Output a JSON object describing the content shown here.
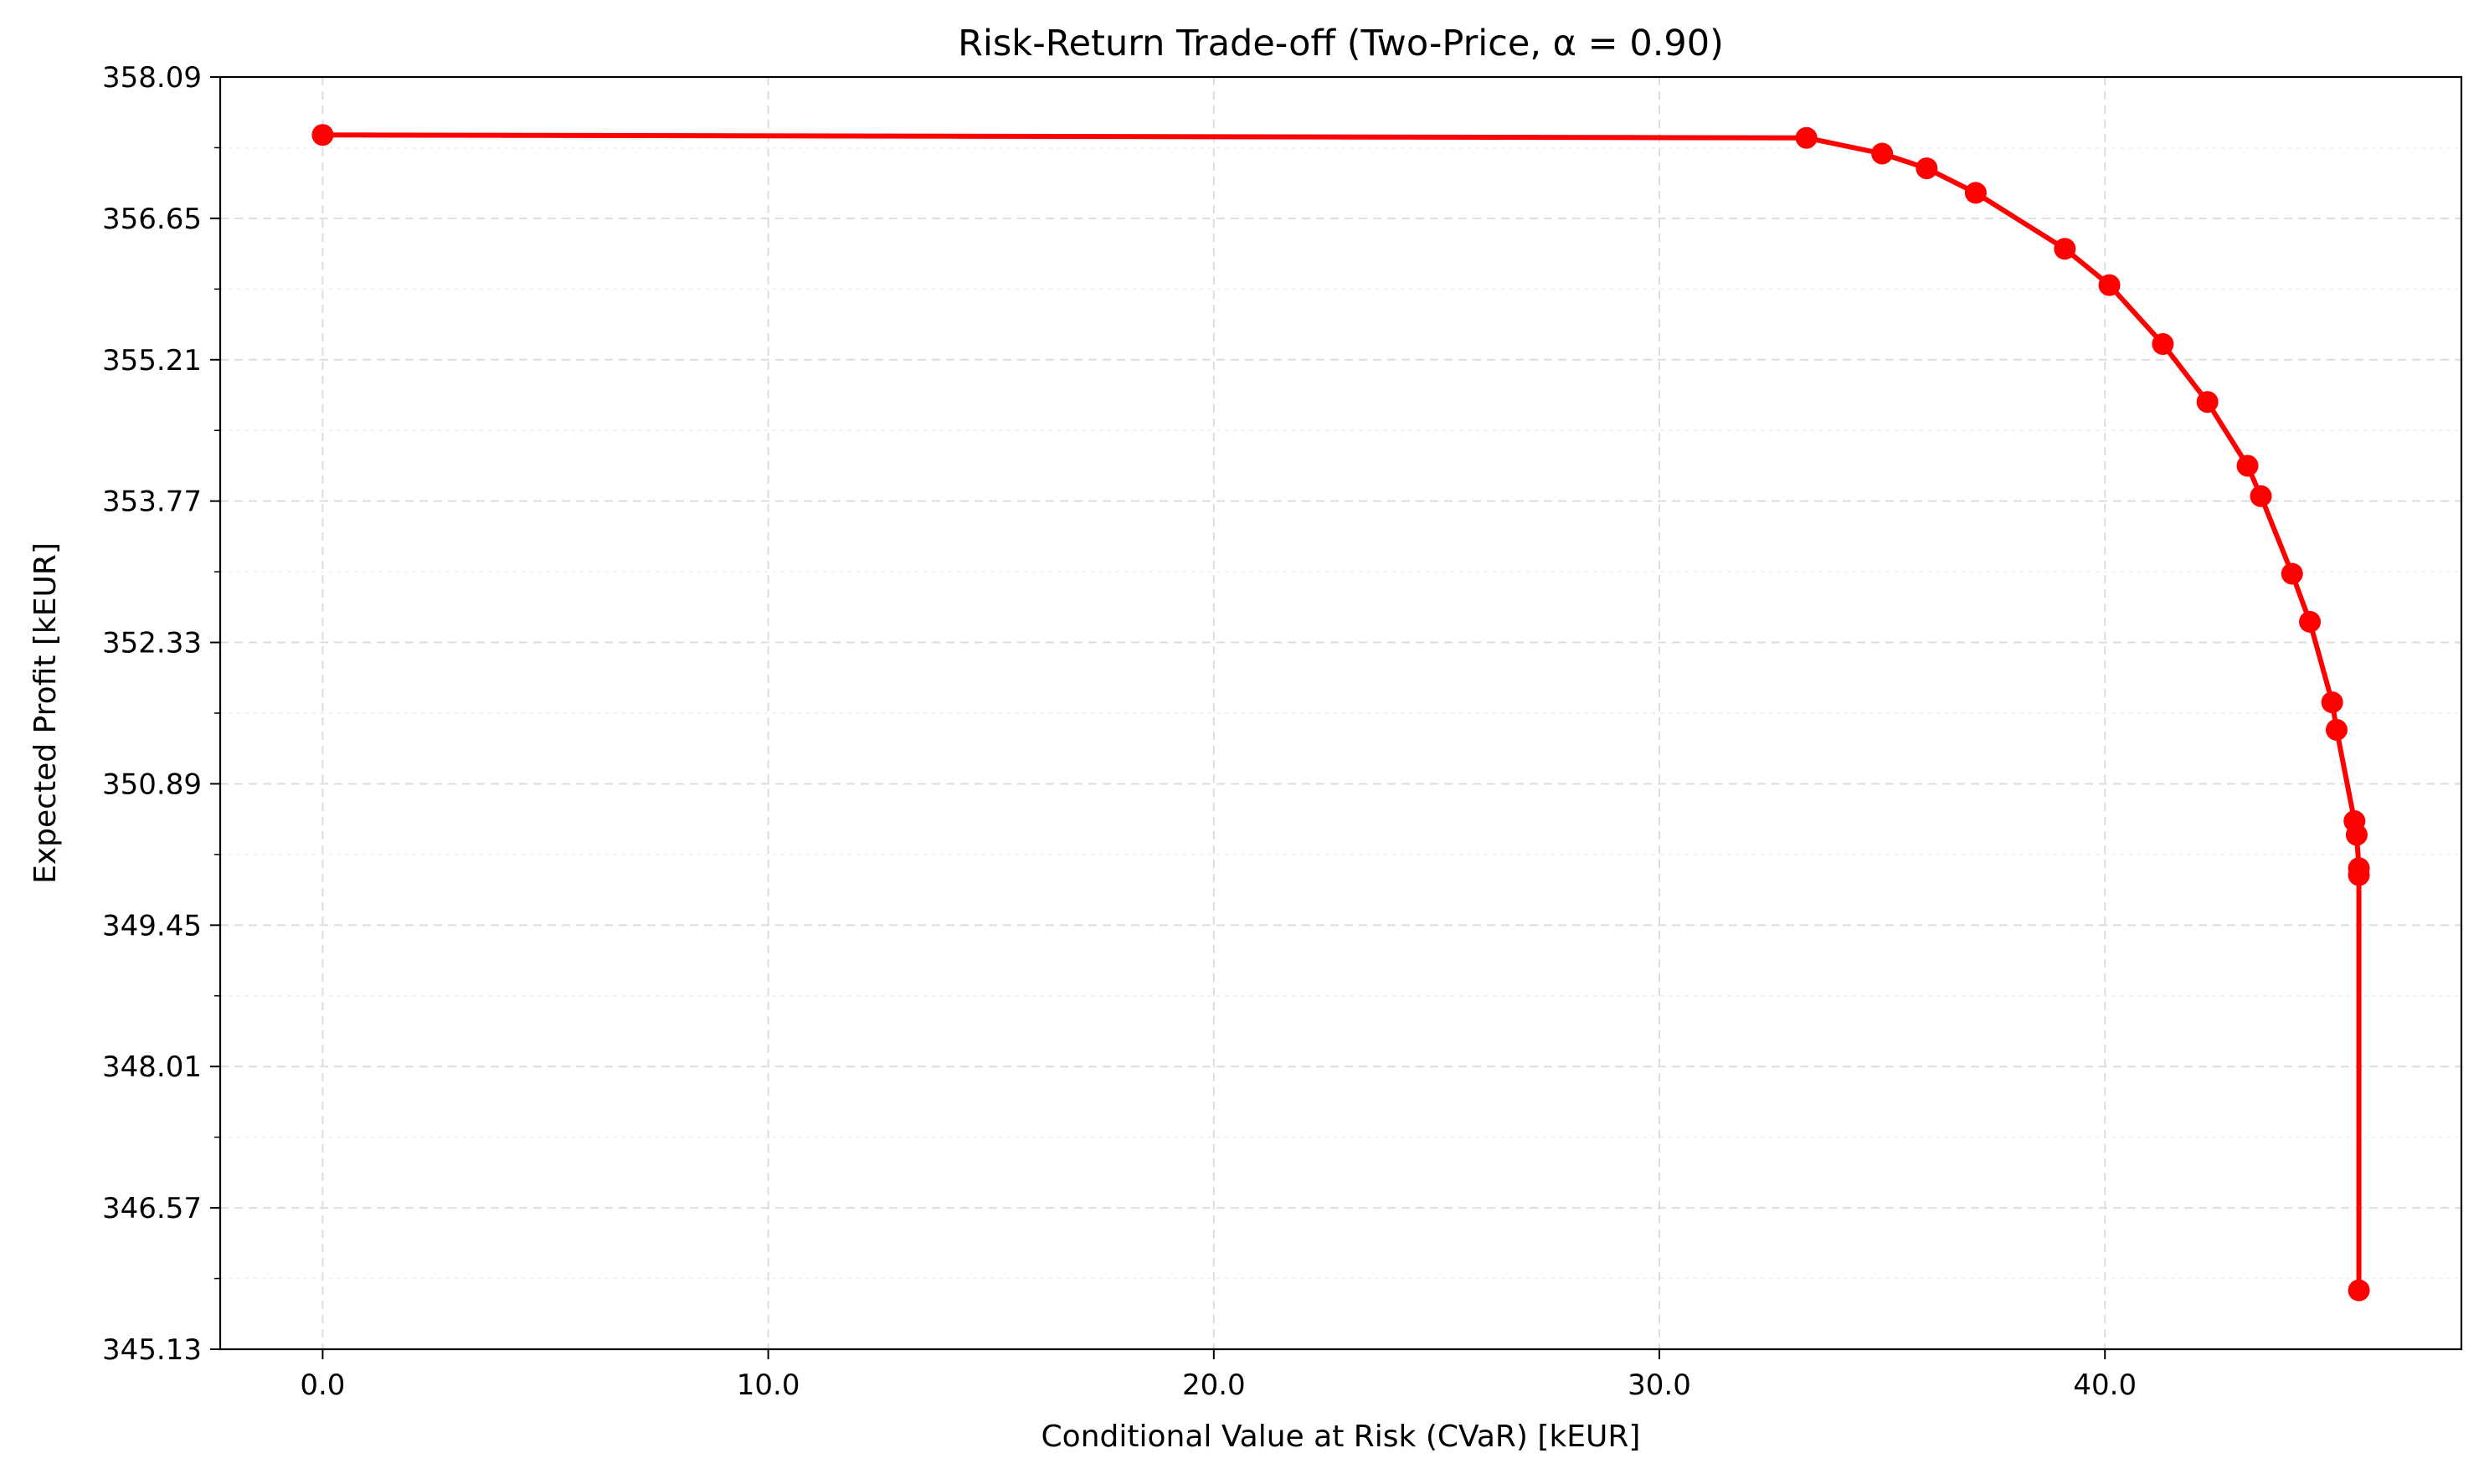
{
  "chart_data": {
    "type": "line",
    "title": "Risk-Return Trade-off (Two-Price, α = 0.90)",
    "xlabel": "Conditional Value at Risk (CVaR) [kEUR]",
    "ylabel": "Expected Profit [kEUR]",
    "xlim": [
      -2.3,
      48.0
    ],
    "ylim": [
      345.13,
      358.09
    ],
    "xticks": [
      0,
      10,
      20,
      30,
      40
    ],
    "xtick_labels": [
      "0.0",
      "10.0",
      "20.0",
      "30.0",
      "40.0"
    ],
    "yticks": [
      345.13,
      346.57,
      348.01,
      349.45,
      350.89,
      352.33,
      353.77,
      355.21,
      356.65,
      358.09
    ],
    "ytick_labels": [
      "345.13",
      "346.57",
      "348.01",
      "349.45",
      "350.89",
      "352.33",
      "353.77",
      "355.21",
      "356.65",
      "358.09"
    ],
    "grid": true,
    "series": [
      {
        "color": "#ff0000",
        "marker": "circle",
        "points": [
          {
            "x": 0.0,
            "y": 357.5
          },
          {
            "x": 33.3,
            "y": 357.47
          },
          {
            "x": 35.0,
            "y": 357.31
          },
          {
            "x": 36.0,
            "y": 357.16
          },
          {
            "x": 37.1,
            "y": 356.91
          },
          {
            "x": 39.1,
            "y": 356.34
          },
          {
            "x": 40.1,
            "y": 355.97
          },
          {
            "x": 41.3,
            "y": 355.37
          },
          {
            "x": 42.3,
            "y": 354.78
          },
          {
            "x": 43.2,
            "y": 354.13
          },
          {
            "x": 43.5,
            "y": 353.82
          },
          {
            "x": 44.2,
            "y": 353.03
          },
          {
            "x": 44.6,
            "y": 352.54
          },
          {
            "x": 45.1,
            "y": 351.72
          },
          {
            "x": 45.2,
            "y": 351.44
          },
          {
            "x": 45.6,
            "y": 350.51
          },
          {
            "x": 45.65,
            "y": 350.37
          },
          {
            "x": 45.7,
            "y": 350.03
          },
          {
            "x": 45.7,
            "y": 349.96
          },
          {
            "x": 45.7,
            "y": 345.73
          }
        ]
      }
    ]
  }
}
